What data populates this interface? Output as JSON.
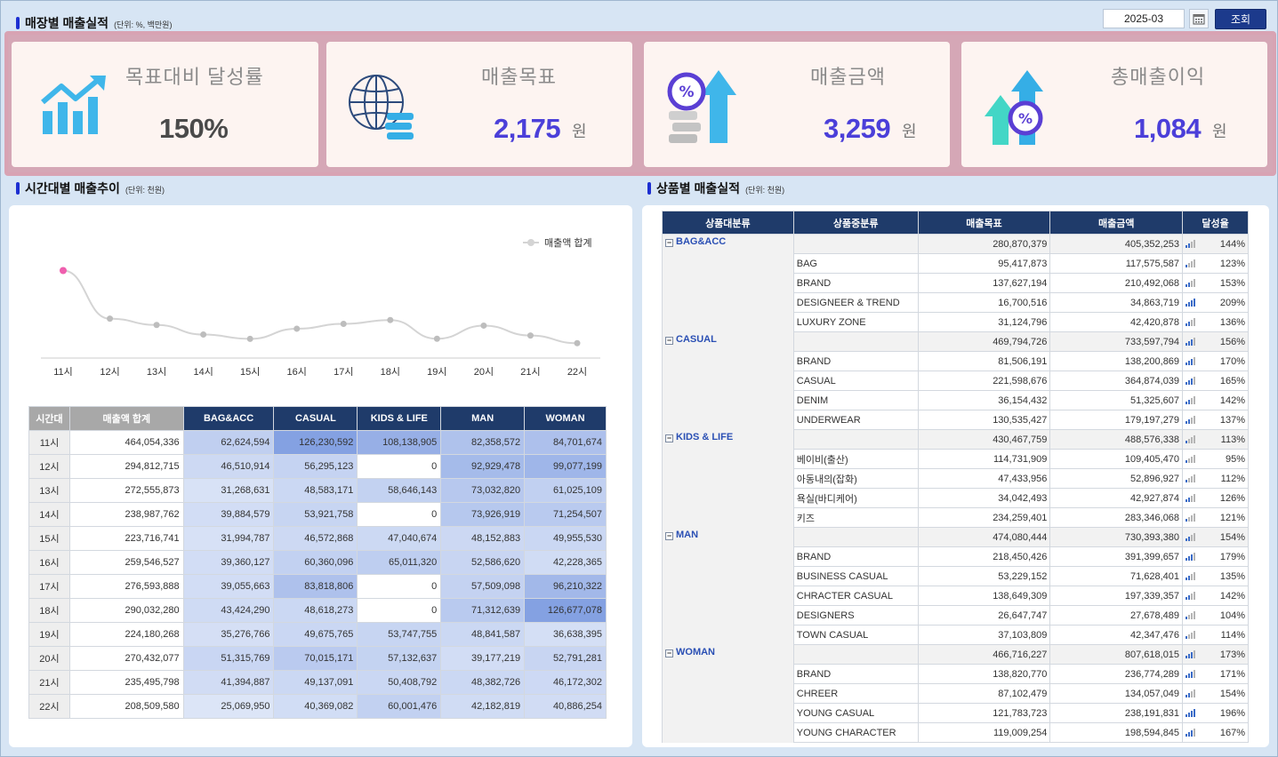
{
  "header": {
    "title": "매장별 매출실적",
    "unit": "(단위: %, 백만원)",
    "date_value": "2025-03",
    "search_label": "조회"
  },
  "kpis": [
    {
      "label": "목표대비 달성률",
      "value": "150%",
      "unit": "",
      "color": "#4a4a4a",
      "icon": "chart-up-icon"
    },
    {
      "label": "매출목표",
      "value": "2,175",
      "unit": "원",
      "color": "#4b3fd9",
      "icon": "globe-icon"
    },
    {
      "label": "매출금액",
      "value": "3,259",
      "unit": "원",
      "color": "#4b3fd9",
      "icon": "percent-arrow-icon"
    },
    {
      "label": "총매출이익",
      "value": "1,084",
      "unit": "원",
      "color": "#4b3fd9",
      "icon": "profit-arrows-icon"
    }
  ],
  "time_section": {
    "title": "시간대별 매출추이",
    "unit": "(단위: 천원)",
    "legend": "매출액 합계"
  },
  "chart_data": {
    "type": "line",
    "categories": [
      "11시",
      "12시",
      "13시",
      "14시",
      "15시",
      "16시",
      "17시",
      "18시",
      "19시",
      "20시",
      "21시",
      "22시"
    ],
    "series": [
      {
        "name": "매출액 합계",
        "values": [
          464054336,
          294812715,
          272555873,
          238987762,
          223716741,
          259546527,
          276593888,
          290032280,
          224180268,
          270432077,
          235495798,
          208509580
        ]
      }
    ],
    "highlight_index": 0,
    "colors": {
      "line": "#d4d4d4",
      "point": "#bdbdbd",
      "highlight": "#ef5fae"
    }
  },
  "hour_table": {
    "headers": [
      "시간대",
      "매출액 합계",
      "BAG&ACC",
      "CASUAL",
      "KIDS & LIFE",
      "MAN",
      "WOMAN"
    ],
    "rows": [
      [
        "11시",
        "464,054,336",
        "62,624,594",
        "126,230,592",
        "108,138,905",
        "82,358,572",
        "84,701,674"
      ],
      [
        "12시",
        "294,812,715",
        "46,510,914",
        "56,295,123",
        "0",
        "92,929,478",
        "99,077,199"
      ],
      [
        "13시",
        "272,555,873",
        "31,268,631",
        "48,583,171",
        "58,646,143",
        "73,032,820",
        "61,025,109"
      ],
      [
        "14시",
        "238,987,762",
        "39,884,579",
        "53,921,758",
        "0",
        "73,926,919",
        "71,254,507"
      ],
      [
        "15시",
        "223,716,741",
        "31,994,787",
        "46,572,868",
        "47,040,674",
        "48,152,883",
        "49,955,530"
      ],
      [
        "16시",
        "259,546,527",
        "39,360,127",
        "60,360,096",
        "65,011,320",
        "52,586,620",
        "42,228,365"
      ],
      [
        "17시",
        "276,593,888",
        "39,055,663",
        "83,818,806",
        "0",
        "57,509,098",
        "96,210,322"
      ],
      [
        "18시",
        "290,032,280",
        "43,424,290",
        "48,618,273",
        "0",
        "71,312,639",
        "126,677,078"
      ],
      [
        "19시",
        "224,180,268",
        "35,276,766",
        "49,675,765",
        "53,747,755",
        "48,841,587",
        "36,638,395"
      ],
      [
        "20시",
        "270,432,077",
        "51,315,769",
        "70,015,171",
        "57,132,637",
        "39,177,219",
        "52,791,281"
      ],
      [
        "21시",
        "235,495,798",
        "41,394,887",
        "49,137,091",
        "50,408,792",
        "48,382,726",
        "46,172,302"
      ],
      [
        "22시",
        "208,509,580",
        "25,069,950",
        "40,369,082",
        "60,001,476",
        "42,182,819",
        "40,886,254"
      ]
    ]
  },
  "product_section": {
    "title": "상품별 매출실적",
    "unit": "(단위: 천원)",
    "headers": [
      "상품대분류",
      "상품중분류",
      "매출목표",
      "매출금액",
      "달성율"
    ],
    "groups": [
      {
        "name": "BAG&ACC",
        "target": "280,870,379",
        "amount": "405,352,253",
        "rate": "144%",
        "rate_pct": 144,
        "items": [
          {
            "name": "BAG",
            "target": "95,417,873",
            "amount": "117,575,587",
            "rate": "123%",
            "rate_pct": 123
          },
          {
            "name": "BRAND",
            "target": "137,627,194",
            "amount": "210,492,068",
            "rate": "153%",
            "rate_pct": 153
          },
          {
            "name": "DESIGNEER & TREND",
            "target": "16,700,516",
            "amount": "34,863,719",
            "rate": "209%",
            "rate_pct": 209
          },
          {
            "name": "LUXURY ZONE",
            "target": "31,124,796",
            "amount": "42,420,878",
            "rate": "136%",
            "rate_pct": 136
          }
        ]
      },
      {
        "name": "CASUAL",
        "target": "469,794,726",
        "amount": "733,597,794",
        "rate": "156%",
        "rate_pct": 156,
        "items": [
          {
            "name": "BRAND",
            "target": "81,506,191",
            "amount": "138,200,869",
            "rate": "170%",
            "rate_pct": 170
          },
          {
            "name": "CASUAL",
            "target": "221,598,676",
            "amount": "364,874,039",
            "rate": "165%",
            "rate_pct": 165
          },
          {
            "name": "DENIM",
            "target": "36,154,432",
            "amount": "51,325,607",
            "rate": "142%",
            "rate_pct": 142
          },
          {
            "name": "UNDERWEAR",
            "target": "130,535,427",
            "amount": "179,197,279",
            "rate": "137%",
            "rate_pct": 137
          }
        ]
      },
      {
        "name": "KIDS & LIFE",
        "target": "430,467,759",
        "amount": "488,576,338",
        "rate": "113%",
        "rate_pct": 113,
        "items": [
          {
            "name": "베이비(출산)",
            "target": "114,731,909",
            "amount": "109,405,470",
            "rate": "95%",
            "rate_pct": 95
          },
          {
            "name": "아동내의(잡화)",
            "target": "47,433,956",
            "amount": "52,896,927",
            "rate": "112%",
            "rate_pct": 112
          },
          {
            "name": "욕실(바디케어)",
            "target": "34,042,493",
            "amount": "42,927,874",
            "rate": "126%",
            "rate_pct": 126
          },
          {
            "name": "키즈",
            "target": "234,259,401",
            "amount": "283,346,068",
            "rate": "121%",
            "rate_pct": 121
          }
        ]
      },
      {
        "name": "MAN",
        "target": "474,080,444",
        "amount": "730,393,380",
        "rate": "154%",
        "rate_pct": 154,
        "items": [
          {
            "name": "BRAND",
            "target": "218,450,426",
            "amount": "391,399,657",
            "rate": "179%",
            "rate_pct": 179
          },
          {
            "name": "BUSINESS CASUAL",
            "target": "53,229,152",
            "amount": "71,628,401",
            "rate": "135%",
            "rate_pct": 135
          },
          {
            "name": "CHRACTER CASUAL",
            "target": "138,649,309",
            "amount": "197,339,357",
            "rate": "142%",
            "rate_pct": 142
          },
          {
            "name": "DESIGNERS",
            "target": "26,647,747",
            "amount": "27,678,489",
            "rate": "104%",
            "rate_pct": 104
          },
          {
            "name": "TOWN CASUAL",
            "target": "37,103,809",
            "amount": "42,347,476",
            "rate": "114%",
            "rate_pct": 114
          }
        ]
      },
      {
        "name": "WOMAN",
        "target": "466,716,227",
        "amount": "807,618,015",
        "rate": "173%",
        "rate_pct": 173,
        "items": [
          {
            "name": "BRAND",
            "target": "138,820,770",
            "amount": "236,774,289",
            "rate": "171%",
            "rate_pct": 171
          },
          {
            "name": "CHREER",
            "target": "87,102,479",
            "amount": "134,057,049",
            "rate": "154%",
            "rate_pct": 154
          },
          {
            "name": "YOUNG CASUAL",
            "target": "121,783,723",
            "amount": "238,191,831",
            "rate": "196%",
            "rate_pct": 196
          },
          {
            "name": "YOUNG CHARACTER",
            "target": "119,009,254",
            "amount": "198,594,845",
            "rate": "167%",
            "rate_pct": 167
          }
        ]
      }
    ]
  }
}
